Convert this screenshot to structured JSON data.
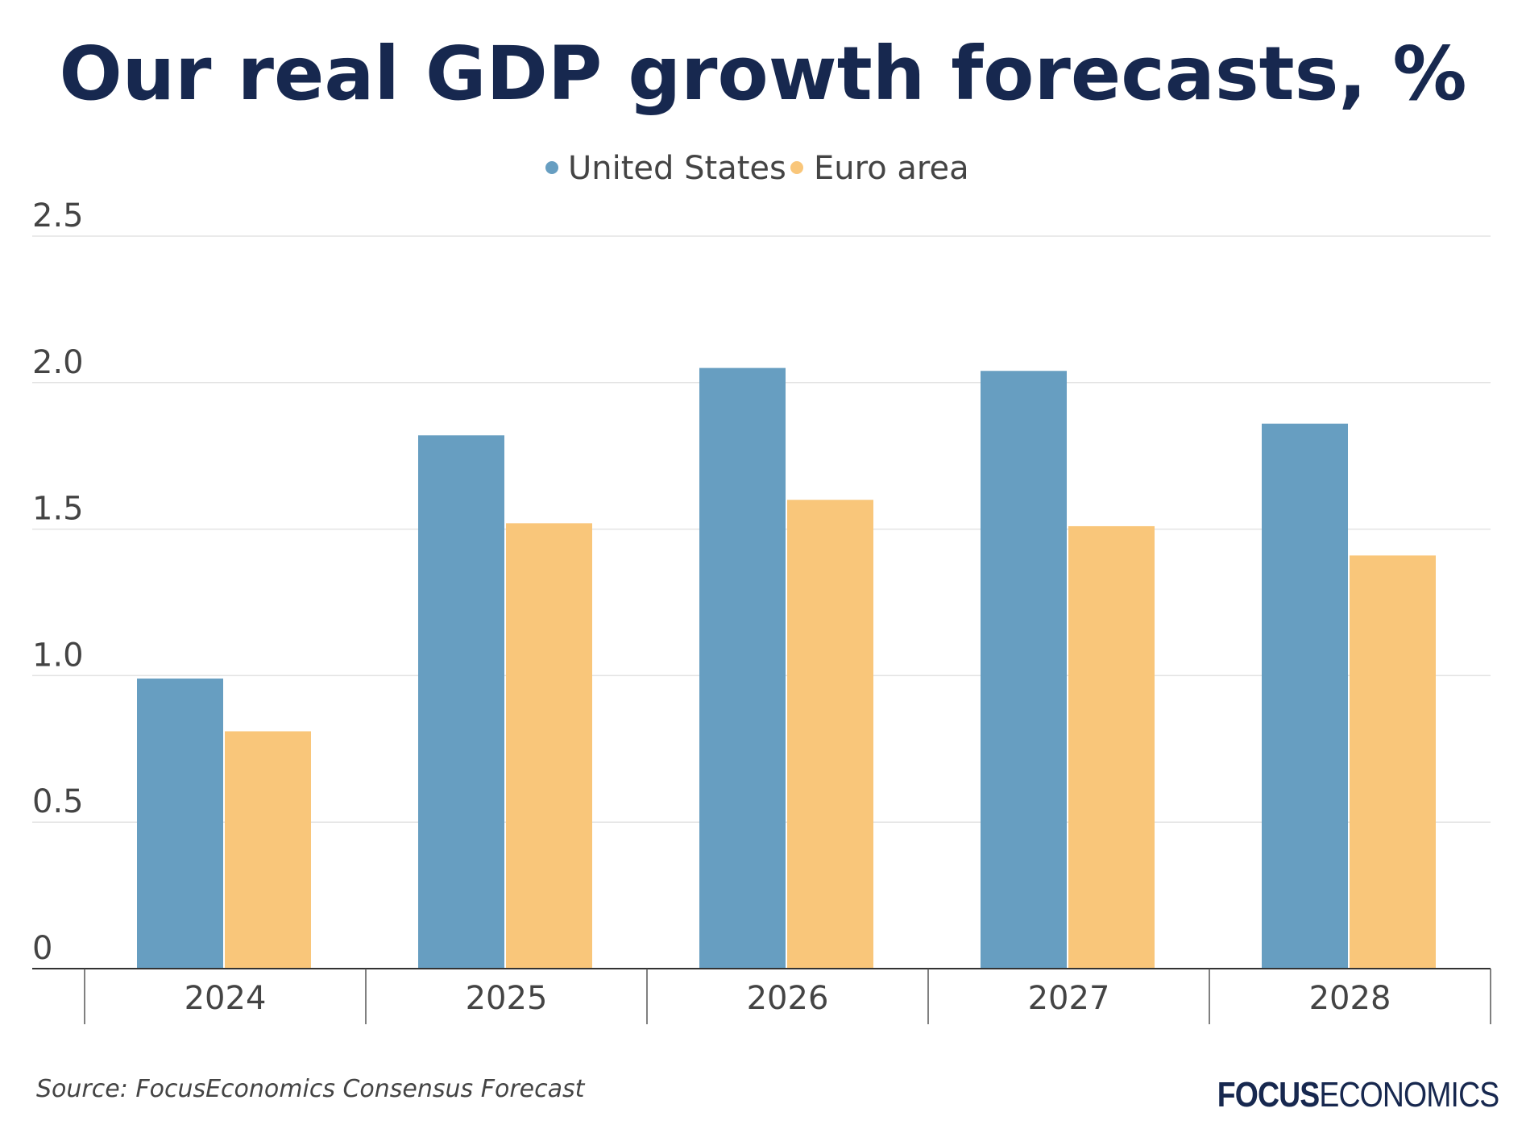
{
  "chart_data": {
    "type": "bar",
    "title": "Our real GDP growth forecasts, %",
    "xlabel": "",
    "ylabel": "",
    "categories": [
      "2024",
      "2025",
      "2026",
      "2027",
      "2028"
    ],
    "series": [
      {
        "name": "United States",
        "color": "#679ec1",
        "values": [
          0.99,
          1.82,
          2.05,
          2.04,
          1.86
        ]
      },
      {
        "name": "Euro area",
        "color": "#f9c67a",
        "values": [
          0.81,
          1.52,
          1.6,
          1.51,
          1.41
        ]
      }
    ],
    "ylim": [
      0,
      2.5
    ],
    "yticks": [
      0,
      0.5,
      1.0,
      1.5,
      2.0,
      2.5
    ],
    "ytick_labels": [
      "0",
      "0.5",
      "1.0",
      "1.5",
      "2.0",
      "2.5"
    ],
    "grid": true,
    "legend_position": "top-center"
  },
  "source": "Source: FocusEconomics Consensus Forecast",
  "brand": {
    "bold": "FOCUS",
    "light": "ECONOMICS"
  },
  "colors": {
    "title": "#17284f",
    "axis": "#444444",
    "grid": "#e3e3e3"
  }
}
